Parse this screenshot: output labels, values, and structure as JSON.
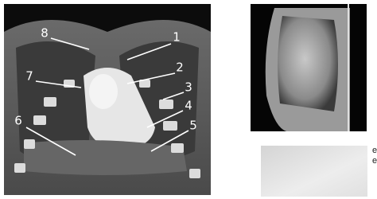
{
  "figure": {
    "labels": [
      "1",
      "2",
      "3",
      "4",
      "5",
      "6",
      "7",
      "8"
    ]
  },
  "side_text": [
    "e",
    "e"
  ]
}
